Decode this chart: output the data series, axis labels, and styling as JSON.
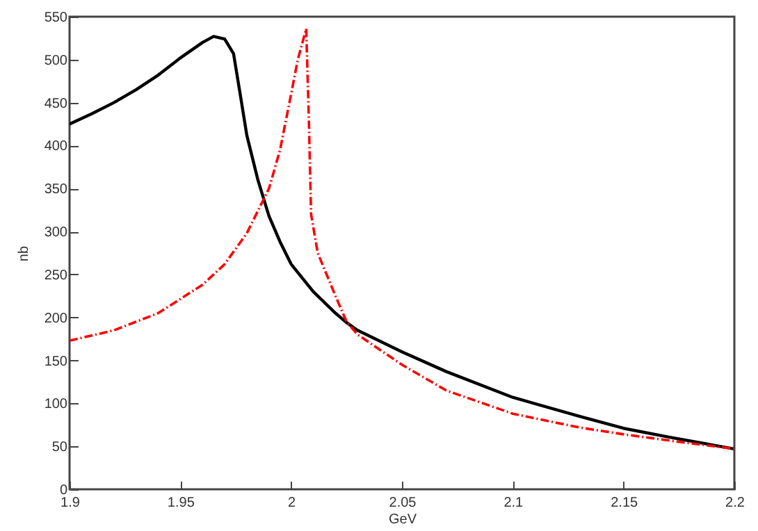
{
  "chart_data": {
    "type": "line",
    "xlabel": "GeV",
    "ylabel": "nb",
    "xlim": [
      1.9,
      2.2
    ],
    "ylim": [
      0,
      550
    ],
    "xticks": [
      1.9,
      1.95,
      2,
      2.05,
      2.1,
      2.15,
      2.2
    ],
    "yticks": [
      0,
      50,
      100,
      150,
      200,
      250,
      300,
      350,
      400,
      450,
      500,
      550
    ],
    "grid": false,
    "series": [
      {
        "color": "#000000",
        "line_style": "solid",
        "x": [
          1.9,
          1.91,
          1.92,
          1.93,
          1.94,
          1.95,
          1.96,
          1.965,
          1.97,
          1.974,
          1.977,
          1.98,
          1.985,
          1.99,
          1.995,
          2.0,
          2.01,
          2.02,
          2.025,
          2.03,
          2.05,
          2.07,
          2.1,
          2.13,
          2.15,
          2.17,
          2.2
        ],
        "values": [
          425,
          437,
          450,
          465,
          482,
          502,
          520,
          527,
          524,
          507,
          460,
          412,
          360,
          318,
          288,
          262,
          230,
          205,
          194,
          185,
          160,
          137,
          107,
          85,
          71,
          61,
          47
        ]
      },
      {
        "color": "#ff0000",
        "line_style": "dashed",
        "x": [
          1.9,
          1.92,
          1.94,
          1.96,
          1.97,
          1.98,
          1.99,
          1.995,
          2.0,
          2.003,
          2.0068,
          2.008,
          2.009,
          2.012,
          2.02,
          2.025,
          2.03,
          2.05,
          2.07,
          2.1,
          2.13,
          2.15,
          2.17,
          2.2
        ],
        "values": [
          173,
          185,
          205,
          238,
          262,
          298,
          350,
          395,
          460,
          500,
          536,
          430,
          320,
          275,
          225,
          195,
          180,
          145,
          115,
          88,
          72,
          64,
          57,
          47
        ]
      }
    ]
  }
}
